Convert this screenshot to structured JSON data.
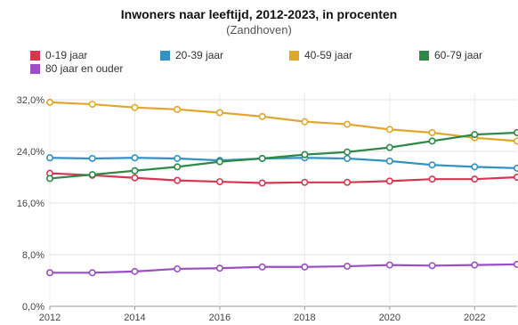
{
  "chart_data": {
    "type": "line",
    "title": "Inwoners naar leeftijd, 2012-2023, in procenten",
    "subtitle": "(Zandhoven)",
    "x": [
      2012,
      2013,
      2014,
      2015,
      2016,
      2017,
      2018,
      2019,
      2020,
      2021,
      2022,
      2023
    ],
    "xticks": [
      "2012",
      "2014",
      "2016",
      "2018",
      "2020",
      "2022"
    ],
    "yticks": [
      "0,0%",
      "8,0%",
      "16,0%",
      "24,0%",
      "32,0%"
    ],
    "ylim": [
      0,
      32
    ],
    "grid": true,
    "legend_position": "top",
    "series": [
      {
        "name": "0-19 jaar",
        "color": "#d6364f",
        "values": [
          20.6,
          20.3,
          19.9,
          19.5,
          19.3,
          19.1,
          19.2,
          19.2,
          19.4,
          19.7,
          19.7,
          20.0
        ]
      },
      {
        "name": "20-39 jaar",
        "color": "#3392c4",
        "values": [
          23.0,
          22.9,
          23.0,
          22.9,
          22.6,
          22.9,
          23.0,
          22.9,
          22.5,
          21.9,
          21.6,
          21.4
        ]
      },
      {
        "name": "40-59 jaar",
        "color": "#e1a72d",
        "values": [
          31.6,
          31.3,
          30.8,
          30.5,
          30.0,
          29.4,
          28.6,
          28.2,
          27.4,
          26.9,
          26.1,
          25.6
        ]
      },
      {
        "name": "60-79 jaar",
        "color": "#2d8a46",
        "values": [
          19.8,
          20.4,
          21.0,
          21.6,
          22.4,
          22.9,
          23.5,
          23.9,
          24.6,
          25.6,
          26.6,
          26.9
        ]
      },
      {
        "name": "80 jaar en ouder",
        "color": "#9b4fc2",
        "values": [
          5.2,
          5.2,
          5.4,
          5.8,
          5.9,
          6.1,
          6.1,
          6.2,
          6.4,
          6.3,
          6.4,
          6.5
        ]
      }
    ]
  }
}
